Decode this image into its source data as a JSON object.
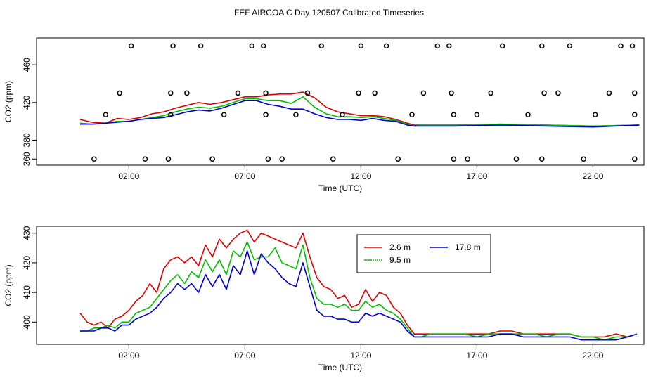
{
  "title": "FEF AIRCOA C  Day 120507  Calibrated Timeseries",
  "colors": {
    "red": "#e00000",
    "green": "#00c000",
    "blue": "#0000d0",
    "axis": "#000000"
  },
  "chart_data": [
    {
      "type": "line+scatter",
      "xlabel": "Time (UTC)",
      "ylabel": "CO2 (ppm)",
      "xlim": [
        -1.98,
        24.2
      ],
      "ylim": [
        353.5,
        488.5
      ],
      "xticks": [
        2,
        7,
        12,
        17,
        22
      ],
      "xtick_labels": [
        "02:00",
        "07:00",
        "12:00",
        "17:00",
        "22:00"
      ],
      "yticks": [
        360,
        380,
        420,
        460
      ],
      "ytick_labels": [
        "360",
        "380",
        "420",
        "460"
      ],
      "scatter_points": [
        [
          0.5,
          360
        ],
        [
          1.0,
          407
        ],
        [
          1.6,
          430
        ],
        [
          2.1,
          480
        ],
        [
          2.7,
          360
        ],
        [
          3.7,
          360
        ],
        [
          3.8,
          407
        ],
        [
          3.8,
          430
        ],
        [
          3.9,
          480
        ],
        [
          4.5,
          430
        ],
        [
          5.1,
          480
        ],
        [
          5.6,
          360
        ],
        [
          6.1,
          407
        ],
        [
          6.7,
          430
        ],
        [
          7.3,
          480
        ],
        [
          7.8,
          480
        ],
        [
          7.9,
          430
        ],
        [
          7.9,
          407
        ],
        [
          8.0,
          360
        ],
        [
          8.6,
          360
        ],
        [
          9.2,
          407
        ],
        [
          9.7,
          430
        ],
        [
          10.3,
          480
        ],
        [
          10.8,
          360
        ],
        [
          11.2,
          407
        ],
        [
          11.9,
          430
        ],
        [
          12.0,
          480
        ],
        [
          12.6,
          430
        ],
        [
          13.1,
          480
        ],
        [
          13.6,
          360
        ],
        [
          14.2,
          407
        ],
        [
          14.7,
          430
        ],
        [
          15.3,
          480
        ],
        [
          15.8,
          480
        ],
        [
          15.9,
          430
        ],
        [
          16.0,
          407
        ],
        [
          16.0,
          360
        ],
        [
          16.6,
          360
        ],
        [
          17.0,
          407
        ],
        [
          17.6,
          430
        ],
        [
          18.1,
          480
        ],
        [
          18.7,
          360
        ],
        [
          19.2,
          407
        ],
        [
          19.8,
          480
        ],
        [
          19.9,
          430
        ],
        [
          19.8,
          360
        ],
        [
          21.0,
          480
        ],
        [
          20.5,
          430
        ],
        [
          21.6,
          360
        ],
        [
          22.1,
          407
        ],
        [
          22.7,
          430
        ],
        [
          23.2,
          480
        ],
        [
          23.7,
          480
        ],
        [
          23.8,
          430
        ],
        [
          23.8,
          407
        ],
        [
          23.8,
          360
        ]
      ],
      "series": [
        {
          "name": "2.6 m",
          "color": "red",
          "x": [
            -0.1,
            0.4,
            1.0,
            1.5,
            2.0,
            2.5,
            3.0,
            3.5,
            4.0,
            4.5,
            5.0,
            5.5,
            6.0,
            6.5,
            7.0,
            7.5,
            8.0,
            8.5,
            9.0,
            9.5,
            10.0,
            10.5,
            11.0,
            11.5,
            12.0,
            12.5,
            13.0,
            13.5,
            14.0,
            14.3,
            14.8,
            16,
            18,
            20,
            22,
            24
          ],
          "y": [
            402,
            399,
            398,
            403,
            402,
            404,
            408,
            410,
            414,
            417,
            420,
            418,
            420,
            423,
            426,
            426,
            428,
            429,
            429,
            431,
            425,
            415,
            410,
            408,
            406,
            406,
            405,
            402,
            398,
            396,
            396,
            396,
            397,
            396,
            395,
            396
          ]
        },
        {
          "name": "9.5 m",
          "color": "green",
          "x": [
            -0.1,
            0.4,
            1.0,
            1.5,
            2.0,
            2.5,
            3.0,
            3.5,
            4.0,
            4.5,
            5.0,
            5.5,
            6.0,
            6.5,
            7.0,
            7.5,
            8.0,
            8.5,
            9.0,
            9.5,
            10.0,
            10.5,
            11.0,
            11.5,
            12.0,
            12.5,
            13.0,
            13.5,
            14.0,
            14.3,
            14.8,
            16,
            18,
            20,
            22,
            24
          ],
          "y": [
            398,
            397,
            398,
            400,
            400,
            402,
            404,
            406,
            410,
            413,
            415,
            414,
            416,
            420,
            424,
            424,
            422,
            422,
            419,
            426,
            415,
            408,
            405,
            405,
            404,
            405,
            403,
            401,
            397,
            395,
            396,
            396,
            397,
            396,
            395,
            396
          ]
        },
        {
          "name": "17.8 m",
          "color": "blue",
          "x": [
            -0.1,
            0.4,
            1.0,
            1.5,
            2.0,
            2.5,
            3.0,
            3.5,
            4.0,
            4.5,
            5.0,
            5.5,
            6.0,
            6.5,
            7.0,
            7.5,
            8.0,
            8.5,
            9.0,
            9.5,
            10.0,
            10.5,
            11.0,
            11.5,
            12.0,
            12.5,
            13.0,
            13.5,
            14.0,
            14.3,
            14.8,
            16,
            18,
            20,
            22,
            24
          ],
          "y": [
            397,
            397,
            398,
            399,
            400,
            402,
            403,
            404,
            407,
            410,
            412,
            411,
            414,
            418,
            422,
            422,
            418,
            416,
            413,
            413,
            408,
            404,
            402,
            402,
            401,
            403,
            401,
            400,
            396,
            395,
            395,
            395,
            396,
            395,
            394,
            396
          ]
        }
      ]
    },
    {
      "type": "line",
      "xlabel": "Time (UTC)",
      "ylabel": "CO2 (ppm)",
      "xlim": [
        -1.98,
        24.2
      ],
      "ylim": [
        392.5,
        432.3
      ],
      "xticks": [
        2,
        7,
        12,
        17,
        22
      ],
      "xtick_labels": [
        "02:00",
        "07:00",
        "12:00",
        "17:00",
        "22:00"
      ],
      "yticks": [
        400,
        410,
        420,
        430
      ],
      "ytick_labels": [
        "400",
        "410",
        "420",
        "430"
      ],
      "legend": {
        "position": "top-right",
        "entries": [
          "2.6 m",
          "9.5 m",
          "17.8 m"
        ]
      },
      "series": [
        {
          "name": "2.6 m",
          "color": "red",
          "x": [
            -0.1,
            0.2,
            0.5,
            0.8,
            1.1,
            1.4,
            1.7,
            2.0,
            2.3,
            2.6,
            2.9,
            3.2,
            3.5,
            3.8,
            4.1,
            4.4,
            4.7,
            5.0,
            5.3,
            5.6,
            5.9,
            6.2,
            6.5,
            6.8,
            7.1,
            7.4,
            7.7,
            8.0,
            8.3,
            8.6,
            8.9,
            9.2,
            9.5,
            9.8,
            10.1,
            10.4,
            10.7,
            11.0,
            11.3,
            11.6,
            11.9,
            12.2,
            12.5,
            12.8,
            13.1,
            13.4,
            13.7,
            14.0,
            14.3,
            14.6,
            15,
            15.5,
            16,
            16.5,
            17,
            17.5,
            18,
            18.5,
            19,
            19.5,
            20,
            20.5,
            21,
            21.5,
            22,
            22.5,
            23,
            23.5,
            23.9
          ],
          "y": [
            403,
            400,
            399,
            400,
            398,
            401,
            402,
            404,
            407,
            409,
            413,
            410,
            418,
            421,
            422,
            420,
            422,
            419,
            426,
            422,
            428,
            425,
            428,
            430,
            431,
            427,
            430,
            429,
            428,
            427,
            426,
            425,
            430,
            422,
            415,
            412,
            411,
            408,
            409,
            405,
            406,
            411,
            407,
            410,
            409,
            405,
            403,
            399,
            396,
            396,
            396,
            396,
            396,
            396,
            396,
            396,
            397,
            397,
            396,
            396,
            396,
            396,
            396,
            395,
            395,
            395,
            396,
            395,
            396
          ]
        },
        {
          "name": "9.5 m",
          "color": "green",
          "x": [
            -0.1,
            0.2,
            0.5,
            0.8,
            1.1,
            1.4,
            1.7,
            2.0,
            2.3,
            2.6,
            2.9,
            3.2,
            3.5,
            3.8,
            4.1,
            4.4,
            4.7,
            5.0,
            5.3,
            5.6,
            5.9,
            6.2,
            6.5,
            6.8,
            7.1,
            7.4,
            7.7,
            8.0,
            8.3,
            8.6,
            8.9,
            9.2,
            9.5,
            9.8,
            10.1,
            10.4,
            10.7,
            11.0,
            11.3,
            11.6,
            11.9,
            12.2,
            12.5,
            12.8,
            13.1,
            13.4,
            13.7,
            14.0,
            14.3,
            14.6,
            15,
            15.5,
            16,
            16.5,
            17,
            17.5,
            18,
            18.5,
            19,
            19.5,
            20,
            20.5,
            21,
            21.5,
            22,
            22.5,
            23,
            23.5,
            23.9
          ],
          "y": [
            397,
            397,
            398,
            398,
            399,
            398,
            400,
            400,
            403,
            404,
            405,
            408,
            411,
            414,
            416,
            413,
            417,
            415,
            421,
            417,
            421,
            416,
            424,
            422,
            427,
            421,
            422,
            422,
            425,
            420,
            419,
            418,
            426,
            415,
            408,
            406,
            406,
            405,
            406,
            404,
            404,
            407,
            405,
            406,
            404,
            403,
            401,
            398,
            395,
            395,
            396,
            396,
            396,
            396,
            395,
            396,
            396,
            396,
            396,
            396,
            395,
            396,
            396,
            395,
            395,
            394,
            395,
            395,
            396
          ]
        },
        {
          "name": "17.8 m",
          "color": "blue",
          "x": [
            -0.1,
            0.2,
            0.5,
            0.8,
            1.1,
            1.4,
            1.7,
            2.0,
            2.3,
            2.6,
            2.9,
            3.2,
            3.5,
            3.8,
            4.1,
            4.4,
            4.7,
            5.0,
            5.3,
            5.6,
            5.9,
            6.2,
            6.5,
            6.8,
            7.1,
            7.4,
            7.7,
            8.0,
            8.3,
            8.6,
            8.9,
            9.2,
            9.5,
            9.8,
            10.1,
            10.4,
            10.7,
            11.0,
            11.3,
            11.6,
            11.9,
            12.2,
            12.5,
            12.8,
            13.1,
            13.4,
            13.7,
            14.0,
            14.3,
            14.6,
            15,
            15.5,
            16,
            16.5,
            17,
            17.5,
            18,
            18.5,
            19,
            19.5,
            20,
            20.5,
            21,
            21.5,
            22,
            22.5,
            23,
            23.5,
            23.9
          ],
          "y": [
            397,
            397,
            397,
            398,
            398,
            397,
            399,
            399,
            401,
            402,
            403,
            405,
            408,
            410,
            413,
            411,
            413,
            410,
            416,
            412,
            416,
            411,
            419,
            416,
            424,
            416,
            423,
            420,
            418,
            415,
            413,
            412,
            420,
            412,
            404,
            402,
            402,
            401,
            401,
            400,
            400,
            403,
            402,
            403,
            402,
            401,
            400,
            397,
            395,
            395,
            395,
            395,
            395,
            395,
            395,
            395,
            396,
            396,
            395,
            395,
            395,
            395,
            395,
            394,
            394,
            394,
            394,
            395,
            396
          ]
        }
      ]
    }
  ]
}
